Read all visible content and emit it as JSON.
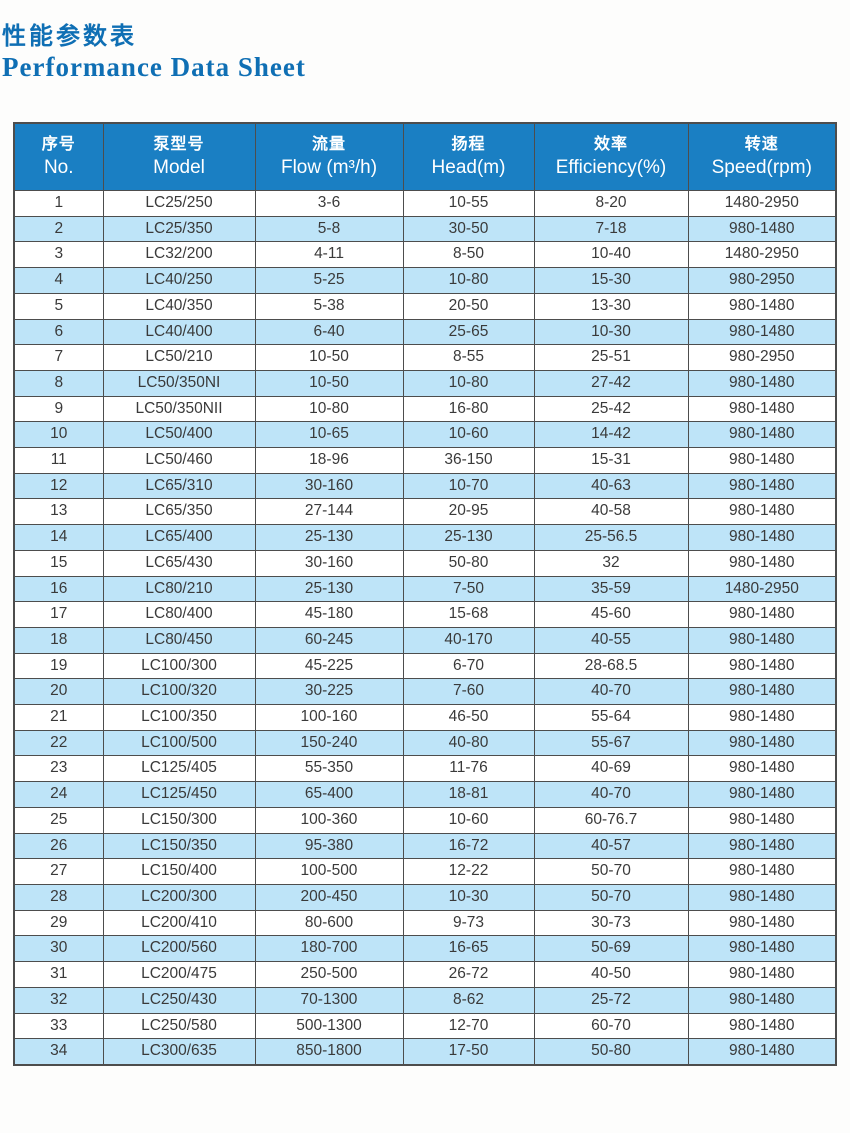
{
  "page": {
    "title_zh": "性能参数表",
    "title_en": "Performance Data Sheet"
  },
  "colors": {
    "header_bg": "#1a7fc3",
    "row_alt_bg": "#bee4f8",
    "title_text": "#0f6fb4",
    "border": "#4d4d4d",
    "cell_text": "#3a3a3a"
  },
  "table": {
    "columns": [
      {
        "zh": "序号",
        "en": "No."
      },
      {
        "zh": "泵型号",
        "en": "Model"
      },
      {
        "zh": "流量",
        "en": "Flow (m³/h)"
      },
      {
        "zh": "扬程",
        "en": "Head(m)"
      },
      {
        "zh": "效率",
        "en": "Efficiency(%)"
      },
      {
        "zh": "转速",
        "en": "Speed(rpm)"
      }
    ],
    "rows": [
      [
        "1",
        "LC25/250",
        "3-6",
        "10-55",
        "8-20",
        "1480-2950"
      ],
      [
        "2",
        "LC25/350",
        "5-8",
        "30-50",
        "7-18",
        "980-1480"
      ],
      [
        "3",
        "LC32/200",
        "4-11",
        "8-50",
        "10-40",
        "1480-2950"
      ],
      [
        "4",
        "LC40/250",
        "5-25",
        "10-80",
        "15-30",
        "980-2950"
      ],
      [
        "5",
        "LC40/350",
        "5-38",
        "20-50",
        "13-30",
        "980-1480"
      ],
      [
        "6",
        "LC40/400",
        "6-40",
        "25-65",
        "10-30",
        "980-1480"
      ],
      [
        "7",
        "LC50/210",
        "10-50",
        "8-55",
        "25-51",
        "980-2950"
      ],
      [
        "8",
        "LC50/350NI",
        "10-50",
        "10-80",
        "27-42",
        "980-1480"
      ],
      [
        "9",
        "LC50/350NII",
        "10-80",
        "16-80",
        "25-42",
        "980-1480"
      ],
      [
        "10",
        "LC50/400",
        "10-65",
        "10-60",
        "14-42",
        "980-1480"
      ],
      [
        "11",
        "LC50/460",
        "18-96",
        "36-150",
        "15-31",
        "980-1480"
      ],
      [
        "12",
        "LC65/310",
        "30-160",
        "10-70",
        "40-63",
        "980-1480"
      ],
      [
        "13",
        "LC65/350",
        "27-144",
        "20-95",
        "40-58",
        "980-1480"
      ],
      [
        "14",
        "LC65/400",
        "25-130",
        "25-130",
        "25-56.5",
        "980-1480"
      ],
      [
        "15",
        "LC65/430",
        "30-160",
        "50-80",
        "32",
        "980-1480"
      ],
      [
        "16",
        "LC80/210",
        "25-130",
        "7-50",
        "35-59",
        "1480-2950"
      ],
      [
        "17",
        "LC80/400",
        "45-180",
        "15-68",
        "45-60",
        "980-1480"
      ],
      [
        "18",
        "LC80/450",
        "60-245",
        "40-170",
        "40-55",
        "980-1480"
      ],
      [
        "19",
        "LC100/300",
        "45-225",
        "6-70",
        "28-68.5",
        "980-1480"
      ],
      [
        "20",
        "LC100/320",
        "30-225",
        "7-60",
        "40-70",
        "980-1480"
      ],
      [
        "21",
        "LC100/350",
        "100-160",
        "46-50",
        "55-64",
        "980-1480"
      ],
      [
        "22",
        "LC100/500",
        "150-240",
        "40-80",
        "55-67",
        "980-1480"
      ],
      [
        "23",
        "LC125/405",
        "55-350",
        "11-76",
        "40-69",
        "980-1480"
      ],
      [
        "24",
        "LC125/450",
        "65-400",
        "18-81",
        "40-70",
        "980-1480"
      ],
      [
        "25",
        "LC150/300",
        "100-360",
        "10-60",
        "60-76.7",
        "980-1480"
      ],
      [
        "26",
        "LC150/350",
        "95-380",
        "16-72",
        "40-57",
        "980-1480"
      ],
      [
        "27",
        "LC150/400",
        "100-500",
        "12-22",
        "50-70",
        "980-1480"
      ],
      [
        "28",
        "LC200/300",
        "200-450",
        "10-30",
        "50-70",
        "980-1480"
      ],
      [
        "29",
        "LC200/410",
        "80-600",
        "9-73",
        "30-73",
        "980-1480"
      ],
      [
        "30",
        "LC200/560",
        "180-700",
        "16-65",
        "50-69",
        "980-1480"
      ],
      [
        "31",
        "LC200/475",
        "250-500",
        "26-72",
        "40-50",
        "980-1480"
      ],
      [
        "32",
        "LC250/430",
        "70-1300",
        "8-62",
        "25-72",
        "980-1480"
      ],
      [
        "33",
        "LC250/580",
        "500-1300",
        "12-70",
        "60-70",
        "980-1480"
      ],
      [
        "34",
        "LC300/635",
        "850-1800",
        "17-50",
        "50-80",
        "980-1480"
      ]
    ]
  }
}
